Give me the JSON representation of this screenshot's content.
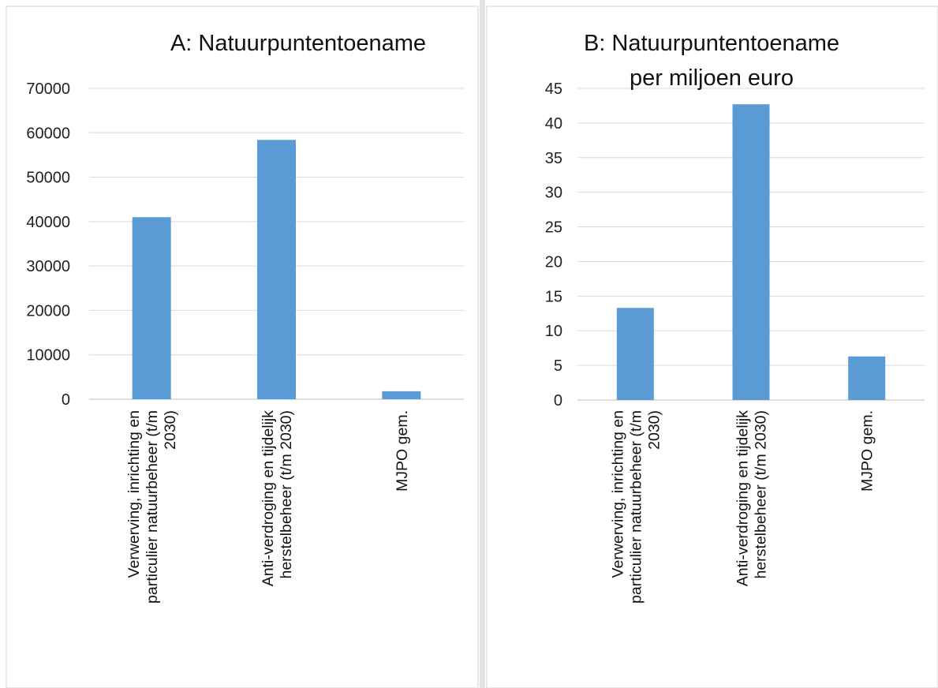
{
  "colors": {
    "bar": "#5b9bd5",
    "grid": "#d9d9d9",
    "text": "#111111"
  },
  "chart_data": [
    {
      "type": "bar",
      "title": "A: Natuurpuntentoename",
      "title_lines": [
        "A: Natuurpuntentoename"
      ],
      "xlabel": "",
      "ylabel": "",
      "ylim": [
        0,
        70000
      ],
      "yticks": [
        0,
        10000,
        20000,
        30000,
        40000,
        50000,
        60000,
        70000
      ],
      "grid": true,
      "legend": "none",
      "categories": [
        "Verwerving, inrichting en particulier natuurbeheer (t/m 2030)",
        "Anti-verdroging en tijdelijk herstelbeheer (t/m 2030)",
        "MJPO gem."
      ],
      "category_lines": [
        [
          "Verwerving, inrichting en",
          "particulier natuurbeheer (t/m",
          "2030)"
        ],
        [
          "Anti-verdroging en tijdelijk",
          "herstelbeheer (t/m 2030)"
        ],
        [
          "MJPO gem."
        ]
      ],
      "values": [
        41000,
        58400,
        1800
      ]
    },
    {
      "type": "bar",
      "title": "B: Natuurpuntentoename per miljoen euro",
      "title_lines": [
        "B: Natuurpuntentoename",
        "per miljoen euro"
      ],
      "xlabel": "",
      "ylabel": "",
      "ylim": [
        0,
        45
      ],
      "yticks": [
        0,
        5,
        10,
        15,
        20,
        25,
        30,
        35,
        40,
        45
      ],
      "grid": true,
      "legend": "none",
      "categories": [
        "Verwerving, inrichting en particulier natuurbeheer (t/m 2030)",
        "Anti-verdroging en tijdelijk herstelbeheer (t/m 2030)",
        "MJPO gem."
      ],
      "category_lines": [
        [
          "Verwerving, inrichting en",
          "particulier natuurbeheer (t/m",
          "2030)"
        ],
        [
          "Anti-verdroging en tijdelijk",
          "herstelbeheer (t/m 2030)"
        ],
        [
          "MJPO gem."
        ]
      ],
      "values": [
        13.3,
        42.7,
        6.3
      ]
    }
  ]
}
